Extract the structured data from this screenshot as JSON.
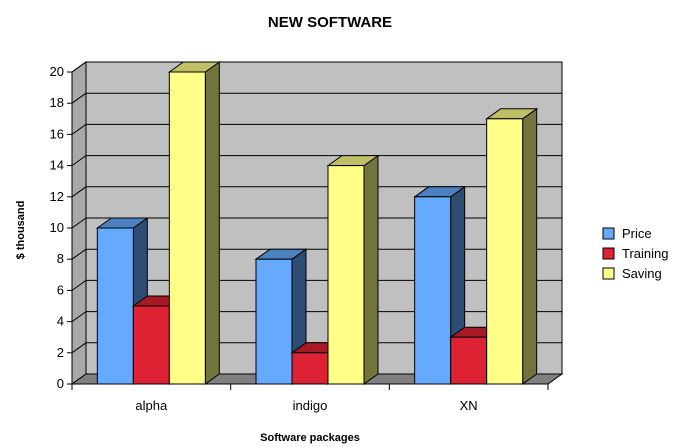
{
  "chart_data": {
    "type": "bar",
    "title": "NEW SOFTWARE",
    "xlabel": "Software packages",
    "ylabel": "$ thousand",
    "categories": [
      "alpha",
      "indigo",
      "XN"
    ],
    "series": [
      {
        "name": "Price",
        "values": [
          10,
          8,
          12
        ],
        "color": "#66aaff"
      },
      {
        "name": "Training",
        "values": [
          5,
          2,
          3
        ],
        "color": "#dd2233"
      },
      {
        "name": "Saving",
        "values": [
          20,
          14,
          17
        ],
        "color": "#ffff88"
      }
    ],
    "ylim": [
      0,
      20
    ],
    "yticks": [
      0,
      2,
      4,
      6,
      8,
      10,
      12,
      14,
      16,
      18,
      20
    ],
    "grid": true,
    "legend": "right",
    "style": "3d",
    "wall_color": "#c0c0c0",
    "floor_color": "#808080"
  }
}
